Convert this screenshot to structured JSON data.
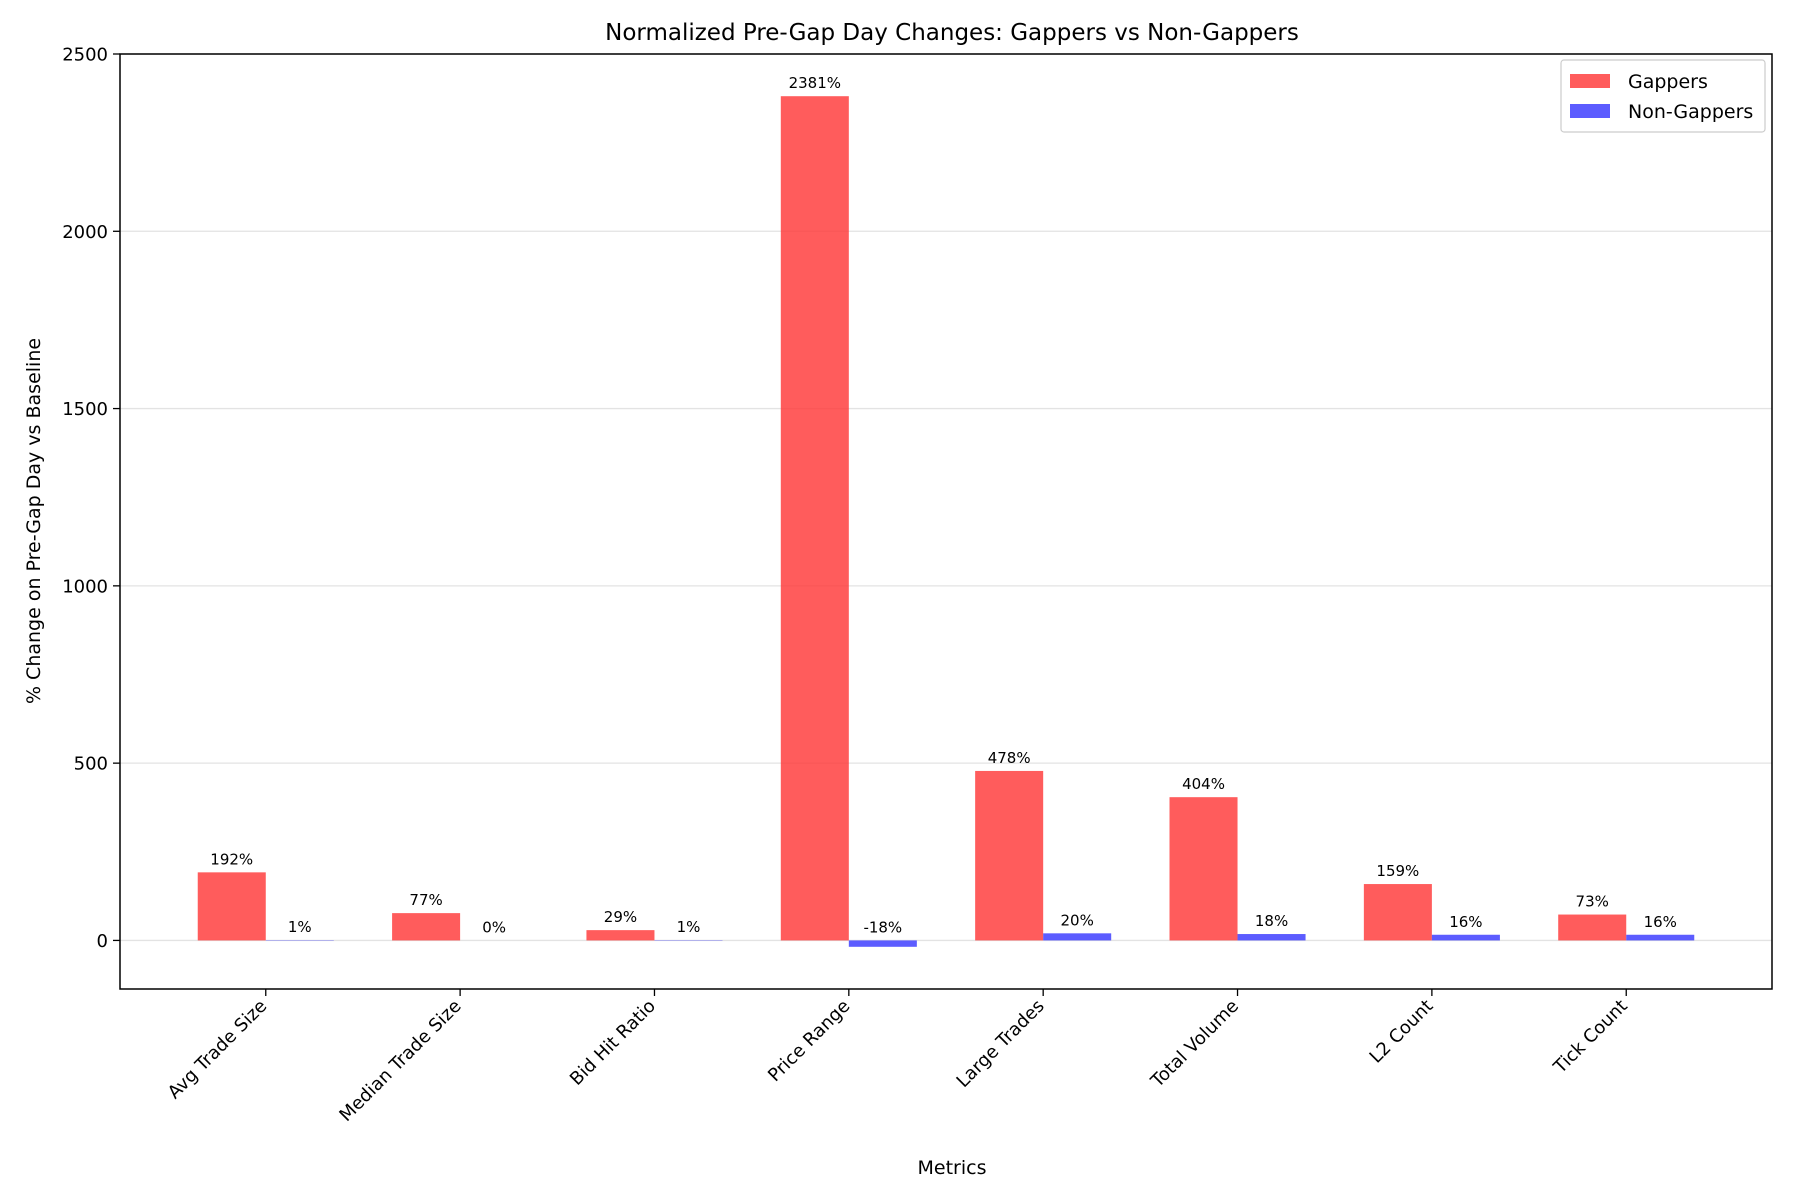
{
  "chart_data": {
    "type": "bar",
    "title": "Normalized Pre-Gap Day Changes: Gappers vs Non-Gappers",
    "xlabel": "Metrics",
    "ylabel": "% Change on Pre-Gap Day vs Baseline",
    "categories": [
      "Avg Trade Size",
      "Median Trade Size",
      "Bid Hit Ratio",
      "Price Range",
      "Large Trades",
      "Total Volume",
      "L2 Count",
      "Tick Count"
    ],
    "series": [
      {
        "name": "Gappers",
        "color": "#ff3333",
        "values": [
          192,
          77,
          29,
          2381,
          478,
          404,
          159,
          73
        ],
        "labels": [
          "192%",
          "77%",
          "29%",
          "2381%",
          "478%",
          "404%",
          "159%",
          "73%"
        ]
      },
      {
        "name": "Non-Gappers",
        "color": "#3333ff",
        "values": [
          1,
          0,
          1,
          -18,
          20,
          18,
          16,
          16
        ],
        "labels": [
          "1%",
          "0%",
          "1%",
          "-18%",
          "20%",
          "18%",
          "16%",
          "16%"
        ]
      }
    ],
    "ylim": [
      -137,
      2500
    ],
    "yticks": [
      0,
      500,
      1000,
      1500,
      2000,
      2500
    ],
    "ytick_labels": [
      "0",
      "500",
      "1000",
      "1500",
      "2000",
      "2500"
    ],
    "grid": "horizontal",
    "legend_position": "top-right"
  }
}
